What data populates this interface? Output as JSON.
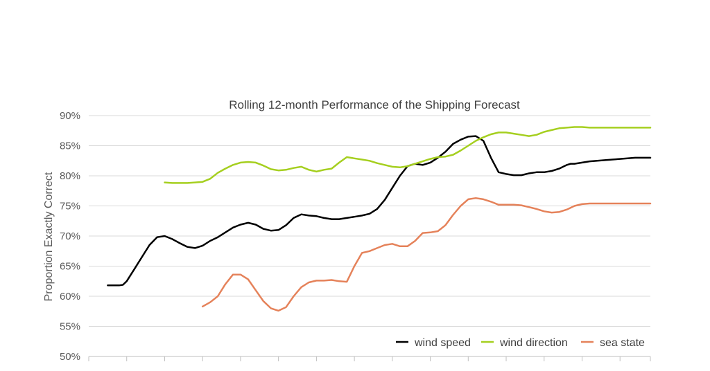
{
  "chart_data": {
    "type": "line",
    "title": "Rolling 12-month Performance of the Shipping Forecast",
    "xlabel": "",
    "ylabel": "Proportion Exactly Correct",
    "ylim": [
      50,
      90
    ],
    "yticks": [
      "90%",
      "85%",
      "80%",
      "75%",
      "70%",
      "65%",
      "60%",
      "55%",
      "50%"
    ],
    "grid": "horizontal",
    "legend_position": "bottom-right",
    "x_range": [
      0,
      148
    ],
    "x_tick_values": [
      0,
      10,
      20,
      30,
      40,
      50,
      60,
      70,
      80,
      90,
      100,
      110,
      120,
      130,
      140,
      148
    ],
    "series": [
      {
        "name": "wind speed",
        "color": "#000000",
        "x": [
          5,
          6,
          7,
          8,
          9,
          10,
          12,
          14,
          16,
          18,
          20,
          22,
          24,
          26,
          28,
          30,
          32,
          34,
          36,
          38,
          40,
          42,
          44,
          46,
          48,
          50,
          52,
          54,
          56,
          58,
          60,
          62,
          64,
          66,
          68,
          70,
          72,
          74,
          76,
          78,
          80,
          82,
          84,
          86,
          88,
          90,
          92,
          94,
          96,
          98,
          100,
          102,
          104,
          106,
          108,
          110,
          112,
          114,
          116,
          118,
          120,
          122,
          124,
          125,
          126,
          127,
          128,
          130,
          132,
          134,
          136,
          138,
          140,
          142,
          144,
          146,
          148
        ],
        "y": [
          61.8,
          61.8,
          61.8,
          61.8,
          61.9,
          62.5,
          64.5,
          66.5,
          68.5,
          69.8,
          70.0,
          69.5,
          68.8,
          68.2,
          68.0,
          68.4,
          69.2,
          69.8,
          70.6,
          71.4,
          71.9,
          72.2,
          71.9,
          71.2,
          70.9,
          71.0,
          71.8,
          73.0,
          73.6,
          73.4,
          73.3,
          73.0,
          72.8,
          72.8,
          73.0,
          73.2,
          73.4,
          73.7,
          74.5,
          76.0,
          78.0,
          80.0,
          81.6,
          82.0,
          81.8,
          82.2,
          83.0,
          84.0,
          85.3,
          86.0,
          86.5,
          86.6,
          85.8,
          83.0,
          80.6,
          80.3,
          80.1,
          80.1,
          80.4,
          80.6,
          80.6,
          80.8,
          81.2,
          81.5,
          81.8,
          82.0,
          82.0,
          82.2,
          82.4,
          82.5,
          82.6,
          82.7,
          82.8,
          82.9,
          83.0,
          83.0,
          83.0
        ]
      },
      {
        "name": "wind direction",
        "color": "#a5cf1f",
        "x": [
          20,
          22,
          24,
          26,
          28,
          30,
          32,
          34,
          36,
          38,
          40,
          42,
          44,
          46,
          48,
          50,
          52,
          54,
          56,
          58,
          60,
          62,
          64,
          66,
          68,
          70,
          72,
          74,
          76,
          78,
          80,
          82,
          84,
          86,
          88,
          90,
          92,
          94,
          96,
          98,
          100,
          102,
          104,
          106,
          108,
          110,
          112,
          114,
          116,
          118,
          120,
          122,
          124,
          126,
          128,
          130,
          132,
          134,
          136,
          138,
          140,
          142,
          144,
          146,
          148
        ],
        "y": [
          78.9,
          78.8,
          78.8,
          78.8,
          78.9,
          79.0,
          79.5,
          80.5,
          81.2,
          81.8,
          82.2,
          82.3,
          82.2,
          81.7,
          81.1,
          80.9,
          81.0,
          81.3,
          81.5,
          81.0,
          80.7,
          81.0,
          81.2,
          82.2,
          83.1,
          82.9,
          82.7,
          82.5,
          82.1,
          81.8,
          81.5,
          81.4,
          81.6,
          82.0,
          82.4,
          82.8,
          83.1,
          83.2,
          83.5,
          84.2,
          85.0,
          85.8,
          86.4,
          86.9,
          87.2,
          87.2,
          87.0,
          86.8,
          86.6,
          86.8,
          87.3,
          87.6,
          87.9,
          88.0,
          88.1,
          88.1,
          88.0,
          88.0,
          88.0,
          88.0,
          88.0,
          88.0,
          88.0,
          88.0,
          88.0
        ]
      },
      {
        "name": "sea state",
        "color": "#e5825a",
        "x": [
          30,
          32,
          34,
          36,
          38,
          40,
          42,
          44,
          46,
          48,
          50,
          52,
          54,
          56,
          58,
          60,
          62,
          64,
          66,
          68,
          70,
          72,
          74,
          76,
          78,
          80,
          82,
          84,
          86,
          88,
          90,
          92,
          94,
          96,
          98,
          100,
          102,
          104,
          106,
          108,
          110,
          112,
          114,
          116,
          118,
          120,
          122,
          124,
          126,
          128,
          130,
          132,
          134,
          136,
          138,
          140,
          142,
          144,
          146,
          148
        ],
        "y": [
          58.3,
          59.0,
          60.0,
          62.0,
          63.6,
          63.6,
          62.8,
          61.0,
          59.2,
          58.0,
          57.6,
          58.2,
          60.0,
          61.5,
          62.3,
          62.6,
          62.6,
          62.7,
          62.5,
          62.4,
          65.0,
          67.2,
          67.5,
          68.0,
          68.5,
          68.7,
          68.3,
          68.3,
          69.2,
          70.5,
          70.6,
          70.8,
          71.8,
          73.5,
          75.0,
          76.1,
          76.3,
          76.1,
          75.7,
          75.2,
          75.2,
          75.2,
          75.1,
          74.8,
          74.5,
          74.1,
          73.9,
          74.0,
          74.4,
          75.0,
          75.3,
          75.4,
          75.4,
          75.4,
          75.4,
          75.4,
          75.4,
          75.4,
          75.4,
          75.4
        ]
      }
    ]
  }
}
